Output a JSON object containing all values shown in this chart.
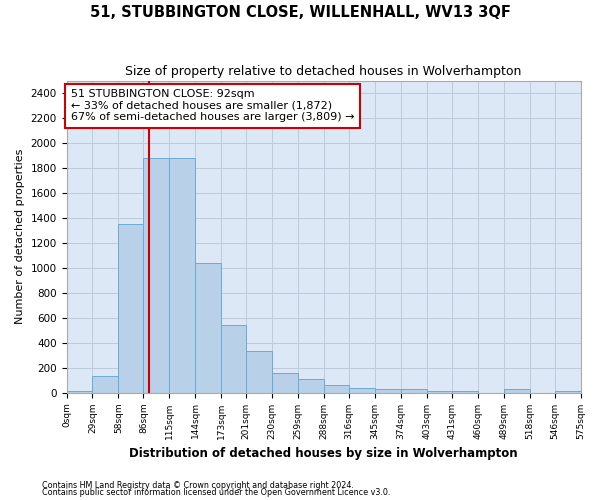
{
  "title": "51, STUBBINGTON CLOSE, WILLENHALL, WV13 3QF",
  "subtitle": "Size of property relative to detached houses in Wolverhampton",
  "xlabel": "Distribution of detached houses by size in Wolverhampton",
  "ylabel": "Number of detached properties",
  "bar_values": [
    15,
    130,
    1350,
    1880,
    1880,
    1040,
    540,
    330,
    160,
    110,
    60,
    35,
    30,
    25,
    15,
    15,
    0,
    25,
    0,
    15
  ],
  "bin_edges": [
    0,
    29,
    58,
    86,
    115,
    144,
    173,
    201,
    230,
    259,
    288,
    316,
    345,
    374,
    403,
    431,
    460,
    489,
    518,
    546,
    575
  ],
  "tick_labels": [
    "0sqm",
    "29sqm",
    "58sqm",
    "86sqm",
    "115sqm",
    "144sqm",
    "173sqm",
    "201sqm",
    "230sqm",
    "259sqm",
    "288sqm",
    "316sqm",
    "345sqm",
    "374sqm",
    "403sqm",
    "431sqm",
    "460sqm",
    "489sqm",
    "518sqm",
    "546sqm",
    "575sqm"
  ],
  "bar_color": "#b8d0e8",
  "bar_edge_color": "#6aaad4",
  "vline_x": 92,
  "vline_color": "#cc0000",
  "ylim": [
    0,
    2500
  ],
  "yticks": [
    0,
    200,
    400,
    600,
    800,
    1000,
    1200,
    1400,
    1600,
    1800,
    2000,
    2200,
    2400
  ],
  "annotation_line1": "51 STUBBINGTON CLOSE: 92sqm",
  "annotation_line2": "← 33% of detached houses are smaller (1,872)",
  "annotation_line3": "67% of semi-detached houses are larger (3,809) →",
  "annotation_box_color": "white",
  "annotation_box_edge_color": "#cc0000",
  "plot_bg_color": "#dce8f5",
  "fig_bg_color": "white",
  "grid_color": "#bbccdd",
  "footer1": "Contains HM Land Registry data © Crown copyright and database right 2024.",
  "footer2": "Contains public sector information licensed under the Open Government Licence v3.0."
}
